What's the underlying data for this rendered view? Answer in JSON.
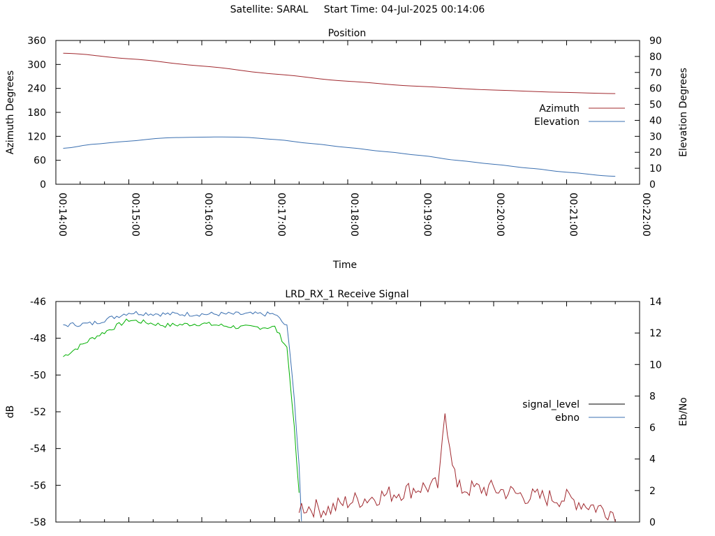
{
  "header": {
    "title": "Satellite: SARAL     Start Time: 04-Jul-2025 00:14:06"
  },
  "colors": {
    "azimuth": "#a0282e",
    "elevation": "#3a6fb0",
    "signal_level": "#a0282e",
    "ebno": "#3a6fb0",
    "extra_green": "#00b000"
  },
  "chart_data": [
    {
      "type": "line",
      "title": "Position",
      "xlabel": "Time",
      "ylabel": "Azimuth Degrees",
      "y2label": "Elevation Degrees",
      "xlim": [
        "00:14:00",
        "00:22:00"
      ],
      "xticks": [
        "00:14:00",
        "00:15:00",
        "00:16:00",
        "00:17:00",
        "00:18:00",
        "00:19:00",
        "00:20:00",
        "00:21:00",
        "00:22:00"
      ],
      "ylim": [
        0,
        360
      ],
      "yticks": [
        "0",
        "60",
        "120",
        "180",
        "240",
        "300",
        "360"
      ],
      "y2lim": [
        0,
        90
      ],
      "y2ticks": [
        "0",
        "10",
        "20",
        "30",
        "40",
        "50",
        "60",
        "70",
        "80",
        "90"
      ],
      "legend_position": "right",
      "series": [
        {
          "name": "Azimuth",
          "axis": "y",
          "x": [
            "00:14:06",
            "00:15:00",
            "00:16:00",
            "00:17:00",
            "00:18:00",
            "00:19:00",
            "00:20:00",
            "00:21:00",
            "00:21:40"
          ],
          "values": [
            328,
            314,
            296,
            276,
            258,
            245,
            236,
            230,
            227
          ]
        },
        {
          "name": "Elevation",
          "axis": "y2",
          "x": [
            "00:14:06",
            "00:14:30",
            "00:15:00",
            "00:15:30",
            "00:16:00",
            "00:16:30",
            "00:17:00",
            "00:17:30",
            "00:18:00",
            "00:18:30",
            "00:19:00",
            "00:19:30",
            "00:20:00",
            "00:20:30",
            "00:21:00",
            "00:21:40"
          ],
          "values": [
            22.5,
            25,
            27,
            29,
            29.5,
            29.5,
            28,
            25.5,
            23,
            20.5,
            18,
            15,
            12.5,
            10,
            7.5,
            5
          ]
        }
      ]
    },
    {
      "type": "line",
      "title": "LRD_RX_1 Receive Signal",
      "ylabel": "dB",
      "y2label": "Eb/No",
      "ylim": [
        -58,
        -46
      ],
      "yticks": [
        "-46",
        "-48",
        "-50",
        "-52",
        "-54",
        "-56",
        "-58"
      ],
      "y2lim": [
        0,
        14
      ],
      "y2ticks": [
        "0",
        "2",
        "4",
        "6",
        "8",
        "10",
        "12",
        "14"
      ],
      "legend_position": "right",
      "series": [
        {
          "name": "signal_level",
          "axis": "y",
          "x": [
            "00:14:06",
            "00:14:30",
            "00:15:00",
            "00:15:30",
            "00:16:00",
            "00:16:30",
            "00:17:00",
            "00:17:10",
            "00:17:15",
            "00:17:20"
          ],
          "values": [
            -49,
            -48,
            -47,
            -47.3,
            -47.2,
            -47.4,
            -47.4,
            -48.5,
            -52,
            -56.5
          ]
        },
        {
          "name": "ebno",
          "axis": "y2",
          "x": [
            "00:14:06",
            "00:14:30",
            "00:15:00",
            "00:15:30",
            "00:16:00",
            "00:16:30",
            "00:17:00",
            "00:17:10",
            "00:17:15",
            "00:17:20",
            "00:17:22"
          ],
          "values": [
            12.5,
            12.6,
            13.3,
            13.2,
            13.2,
            13.2,
            13.2,
            12.4,
            9,
            3.5,
            0
          ]
        },
        {
          "axis": "y2",
          "x": [
            "00:17:20",
            "00:17:45",
            "00:18:00",
            "00:18:30",
            "00:19:00",
            "00:19:15",
            "00:19:20",
            "00:19:30",
            "00:20:00",
            "00:20:30",
            "00:21:00",
            "00:21:40"
          ],
          "values": [
            1,
            0.8,
            1.3,
            1.7,
            2.2,
            2.3,
            7,
            2.1,
            2.1,
            1.6,
            1.5,
            0.6
          ]
        }
      ]
    }
  ]
}
